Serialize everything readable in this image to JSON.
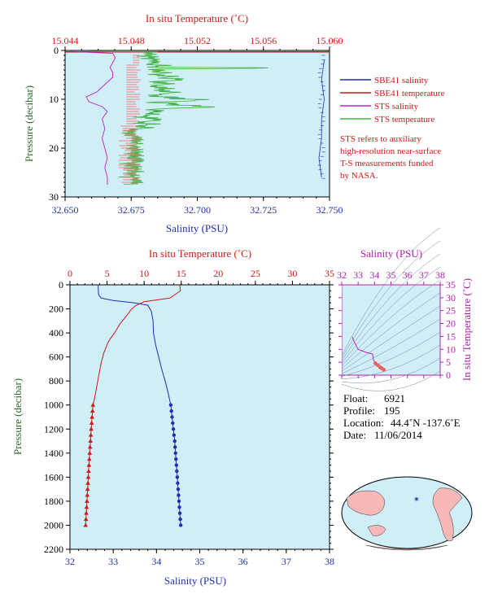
{
  "colors": {
    "salinity": "#1f2fb0",
    "temperature": "#d01818",
    "sts_salinity": "#c020c8",
    "sts_temperature": "#40b040",
    "plot_bg": "#cfeef8",
    "axis_magenta": "#b020b0",
    "axis_green": "#2a6a2a"
  },
  "top_chart": {
    "x_top_label": "In situ Temperature (˚C)",
    "x_bottom_label": "Salinity (PSU)",
    "y_label": "Pressure (decibar)",
    "temp_ticks": [
      "15.044",
      "15.048",
      "15.052",
      "15.056",
      "15.060"
    ],
    "sal_ticks": [
      "32.650",
      "32.675",
      "32.700",
      "32.725",
      "32.750"
    ],
    "pres_ticks": [
      "0",
      "10",
      "20",
      "30"
    ],
    "legend": [
      {
        "label": "SBE41 salinity",
        "color": "#1f2fb0"
      },
      {
        "label": "SBE41 temperature",
        "color": "#d01818"
      },
      {
        "label": "STS salinity",
        "color": "#c020c8"
      },
      {
        "label": "STS temperature",
        "color": "#40b040"
      }
    ],
    "note": [
      "STS refers to auxiliary",
      "high-resolution near-surface",
      "T-S measurements funded",
      "by NASA."
    ]
  },
  "main_chart": {
    "x_top_label": "In situ Temperature (˚C)",
    "x_bottom_label": "Salinity (PSU)",
    "y_label": "Pressure (decibar)",
    "temp_ticks": [
      "0",
      "5",
      "10",
      "15",
      "20",
      "25",
      "30",
      "35"
    ],
    "sal_ticks": [
      "32",
      "33",
      "34",
      "35",
      "36",
      "37",
      "38"
    ],
    "pres_ticks": [
      "0",
      "200",
      "400",
      "600",
      "800",
      "1000",
      "1200",
      "1400",
      "1600",
      "1800",
      "2000",
      "2200"
    ]
  },
  "ts_chart": {
    "x_top_label": "Salinity (PSU)",
    "y_right_label": "In situ Temperature (˚C)",
    "sal_ticks": [
      "32",
      "33",
      "34",
      "35",
      "36",
      "37",
      "38"
    ],
    "temp_ticks": [
      "0",
      "5",
      "10",
      "15",
      "20",
      "25",
      "30",
      "35"
    ]
  },
  "info": {
    "float_label": "Float:",
    "float_value": "6921",
    "profile_label": "Profile:",
    "profile_value": "195",
    "location_label": "Location:",
    "location_value": "44.4˚N  -137.6˚E",
    "date_label": "Date:",
    "date_value": "11/06/2014"
  },
  "chart_data": [
    {
      "type": "line",
      "title": "",
      "xlabel": "Salinity (PSU)",
      "x2label": "In situ Temperature (˚C)",
      "ylabel": "Pressure (decibar)",
      "xlim": [
        32.65,
        32.75
      ],
      "x2lim": [
        15.044,
        15.06
      ],
      "ylim": [
        30,
        0
      ],
      "series": [
        {
          "name": "SBE41 salinity",
          "axis": "salinity",
          "points": [
            [
              32.748,
              2
            ],
            [
              32.747,
              6
            ],
            [
              32.748,
              10
            ],
            [
              32.747,
              14
            ],
            [
              32.747,
              18
            ],
            [
              32.746,
              22
            ],
            [
              32.747,
              26
            ]
          ]
        },
        {
          "name": "SBE41 temperature",
          "axis": "temperature",
          "points": [
            [
              15.059,
              0.3
            ]
          ]
        },
        {
          "name": "STS salinity",
          "axis": "salinity",
          "points": [
            [
              32.652,
              0.2
            ],
            [
              32.668,
              0.6
            ],
            [
              32.669,
              1.5
            ],
            [
              32.668,
              2.5
            ],
            [
              32.667,
              3.5
            ],
            [
              32.668,
              4.5
            ],
            [
              32.668,
              5.5
            ],
            [
              32.666,
              6.5
            ],
            [
              32.664,
              7.5
            ],
            [
              32.662,
              8.5
            ],
            [
              32.658,
              9.5
            ],
            [
              32.659,
              10.5
            ],
            [
              32.664,
              11.5
            ],
            [
              32.666,
              12.5
            ],
            [
              32.664,
              14
            ],
            [
              32.665,
              16
            ],
            [
              32.664,
              18
            ],
            [
              32.665,
              20
            ],
            [
              32.666,
              22
            ],
            [
              32.665,
              24
            ],
            [
              32.666,
              26
            ],
            [
              32.666,
              27.5
            ]
          ]
        },
        {
          "name": "STS temperature",
          "axis": "temperature",
          "temp_range_points": [
            [
              15.0455,
              0.2
            ],
            [
              15.0482,
              1.5
            ],
            [
              15.0478,
              3
            ],
            [
              15.0485,
              4
            ],
            [
              15.0483,
              5
            ],
            [
              15.0484,
              6.5
            ],
            [
              15.0484,
              8
            ],
            [
              15.0482,
              9.5
            ],
            [
              15.0483,
              11
            ],
            [
              15.0484,
              13
            ],
            [
              15.0479,
              16
            ],
            [
              15.0478,
              18
            ],
            [
              15.0478,
              20
            ],
            [
              15.0479,
              22
            ],
            [
              15.0481,
              24
            ],
            [
              15.0484,
              25.5
            ],
            [
              15.0484,
              27
            ]
          ]
        }
      ]
    },
    {
      "type": "line",
      "title": "",
      "xlabel": "Salinity (PSU)",
      "x2label": "In situ Temperature (˚C)",
      "ylabel": "Pressure (decibar)",
      "xlim": [
        32,
        38
      ],
      "x2lim": [
        0,
        35
      ],
      "ylim": [
        2200,
        0
      ],
      "series": [
        {
          "name": "Salinity",
          "axis": "salinity",
          "points": [
            [
              32.65,
              0
            ],
            [
              32.66,
              80
            ],
            [
              32.72,
              110
            ],
            [
              33.0,
              130
            ],
            [
              33.5,
              150
            ],
            [
              33.8,
              170
            ],
            [
              33.88,
              220
            ],
            [
              33.92,
              300
            ],
            [
              33.93,
              400
            ],
            [
              33.98,
              500
            ],
            [
              34.05,
              600
            ],
            [
              34.12,
              700
            ],
            [
              34.2,
              800
            ],
            [
              34.27,
              900
            ],
            [
              34.33,
              1000
            ],
            [
              34.36,
              1100
            ],
            [
              34.39,
              1200
            ],
            [
              34.42,
              1300
            ],
            [
              34.44,
              1400
            ],
            [
              34.46,
              1500
            ],
            [
              34.48,
              1600
            ],
            [
              34.5,
              1700
            ],
            [
              34.52,
              1800
            ],
            [
              34.54,
              1900
            ],
            [
              34.56,
              2000
            ]
          ]
        },
        {
          "name": "Temperature",
          "axis": "temperature",
          "points": [
            [
              14.8,
              0
            ],
            [
              14.9,
              50
            ],
            [
              13.5,
              110
            ],
            [
              10.0,
              140
            ],
            [
              8.8,
              175
            ],
            [
              8.2,
              210
            ],
            [
              7.6,
              260
            ],
            [
              6.8,
              320
            ],
            [
              6.0,
              400
            ],
            [
              5.2,
              470
            ],
            [
              4.6,
              560
            ],
            [
              4.2,
              650
            ],
            [
              3.9,
              750
            ],
            [
              3.6,
              850
            ],
            [
              3.3,
              950
            ],
            [
              3.1,
              1000
            ],
            [
              2.98,
              1100
            ],
            [
              2.86,
              1200
            ],
            [
              2.76,
              1300
            ],
            [
              2.66,
              1400
            ],
            [
              2.56,
              1500
            ],
            [
              2.47,
              1600
            ],
            [
              2.38,
              1700
            ],
            [
              2.29,
              1800
            ],
            [
              2.2,
              1900
            ],
            [
              2.11,
              2000
            ]
          ]
        }
      ],
      "marker_depths": [
        1000,
        1050,
        1100,
        1150,
        1200,
        1250,
        1300,
        1350,
        1400,
        1450,
        1500,
        1550,
        1600,
        1650,
        1700,
        1750,
        1800,
        1850,
        1900,
        1950,
        2000
      ]
    },
    {
      "type": "scatter",
      "title": "",
      "xlabel": "Salinity (PSU)",
      "ylabel": "In situ Temperature (˚C)",
      "xlim": [
        32,
        38
      ],
      "ylim": [
        0,
        35
      ],
      "series": [
        {
          "name": "T-S",
          "points": [
            [
              32.65,
              14.8
            ],
            [
              32.72,
              13.5
            ],
            [
              33.0,
              10.0
            ],
            [
              33.5,
              8.8
            ],
            [
              33.88,
              8.2
            ],
            [
              33.93,
              6.0
            ],
            [
              34.05,
              4.6
            ],
            [
              34.2,
              3.9
            ],
            [
              34.33,
              3.1
            ],
            [
              34.44,
              2.66
            ],
            [
              34.56,
              2.11
            ]
          ]
        }
      ]
    }
  ]
}
